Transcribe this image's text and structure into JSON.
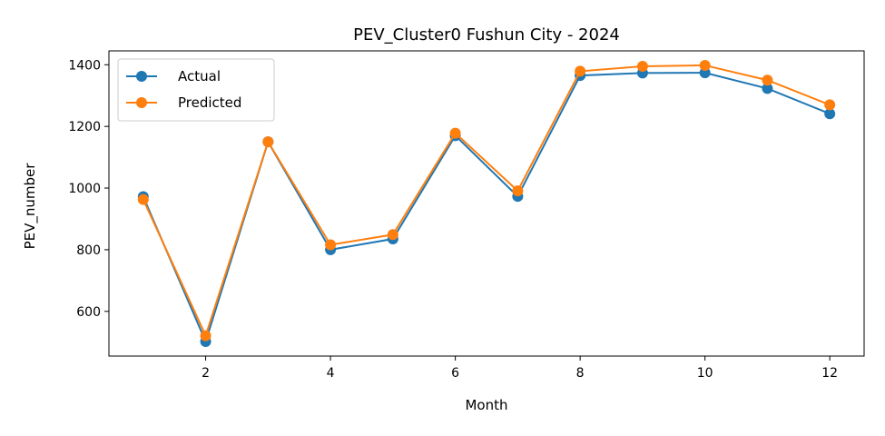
{
  "chart_data": {
    "type": "line",
    "title": "PEV_Cluster0 Fushun City - 2024",
    "xlabel": "Month",
    "ylabel": "PEV_number",
    "x": [
      1,
      2,
      3,
      4,
      5,
      6,
      7,
      8,
      9,
      10,
      11,
      12
    ],
    "xlim": [
      0.45,
      12.55
    ],
    "ylim": [
      455,
      1445
    ],
    "xticks": [
      2,
      4,
      6,
      8,
      10,
      12
    ],
    "yticks": [
      600,
      800,
      1000,
      1200,
      1400
    ],
    "grid": false,
    "legend_position": "upper-left",
    "series": [
      {
        "name": "Actual",
        "color": "#1f77b4",
        "values": [
          972,
          502,
          1150,
          800,
          835,
          1170,
          973,
          1365,
          1373,
          1374,
          1323,
          1241
        ]
      },
      {
        "name": "Predicted",
        "color": "#ff7f0e",
        "values": [
          963,
          521,
          1150,
          816,
          849,
          1178,
          991,
          1379,
          1395,
          1398,
          1350,
          1270
        ]
      }
    ]
  }
}
